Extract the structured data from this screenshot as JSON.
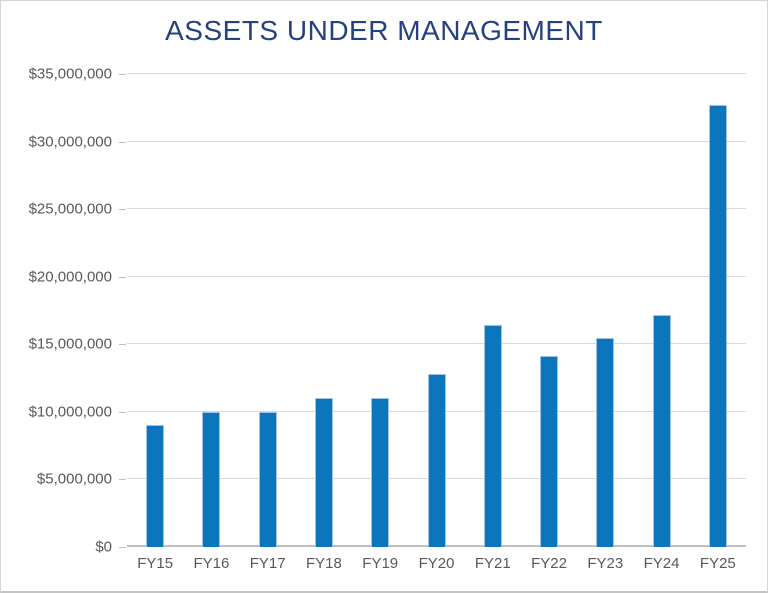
{
  "chart_data": {
    "type": "bar",
    "title": "ASSETS UNDER MANAGEMENT",
    "categories": [
      "FY15",
      "FY16",
      "FY17",
      "FY18",
      "FY19",
      "FY20",
      "FY21",
      "FY22",
      "FY23",
      "FY24",
      "FY25"
    ],
    "values": [
      9000000,
      10000000,
      10000000,
      11000000,
      11000000,
      12800000,
      16400000,
      14100000,
      15500000,
      17200000,
      32700000
    ],
    "xlabel": "",
    "ylabel": "",
    "ylim": [
      0,
      35000000
    ],
    "ytick_step": 5000000,
    "ytick_labels": [
      "$0",
      "$5,000,000",
      "$10,000,000",
      "$15,000,000",
      "$20,000,000",
      "$25,000,000",
      "$30,000,000",
      "$35,000,000"
    ],
    "grid": true,
    "legend": false,
    "colors": {
      "bar_fill": "#0b76bc",
      "bar_border": "#9dc3e6",
      "title": "#26417f",
      "axis_text": "#595959",
      "gridline": "#d9d9d9",
      "axis_line": "#bfbfbf"
    }
  }
}
